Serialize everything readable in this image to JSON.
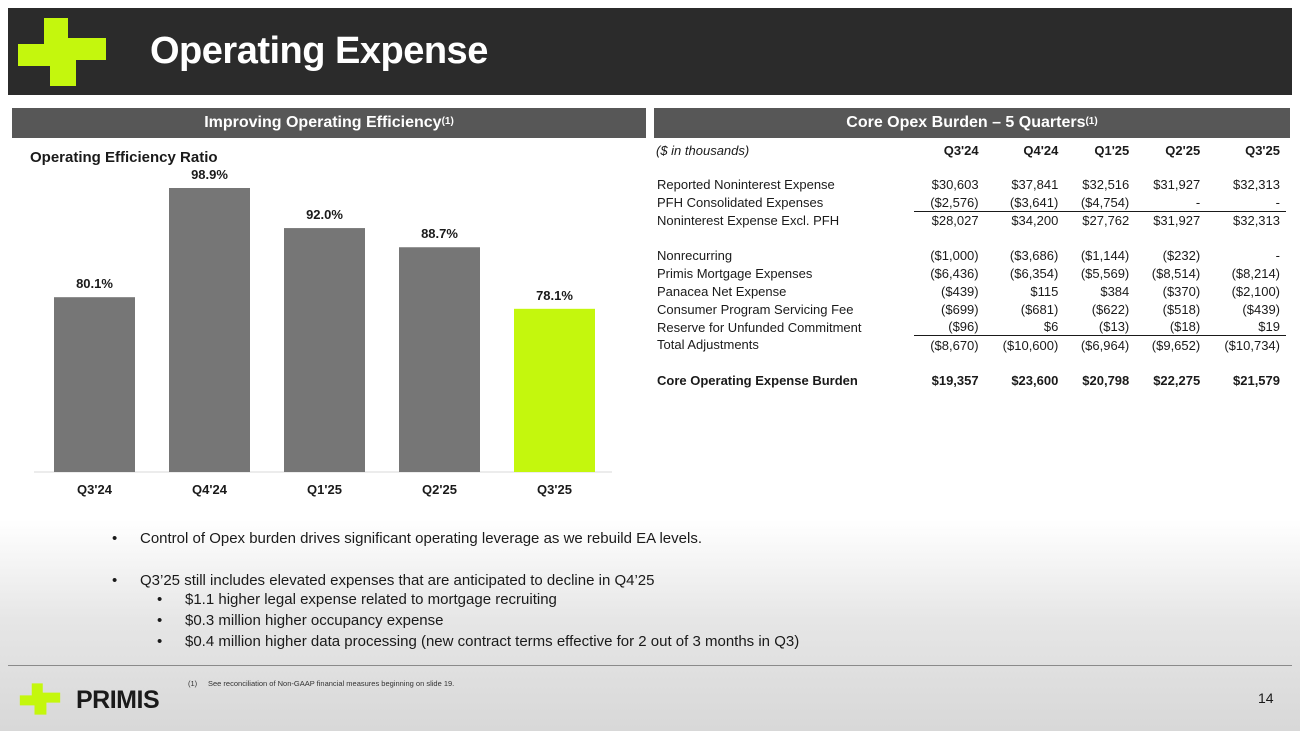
{
  "header": {
    "title": "Operating Expense"
  },
  "left_section": {
    "heading": "Improving Operating Efficiency",
    "heading_sup": "(1)"
  },
  "right_section": {
    "heading": "Core Opex Burden – 5 Quarters",
    "heading_sup": "(1)"
  },
  "colors": {
    "accent": "#c4f70d",
    "bar": "#767676",
    "header_bg": "#2b2b2b",
    "section_bg": "#575757"
  },
  "chart_data": {
    "type": "bar",
    "title": "Operating Efficiency Ratio",
    "categories": [
      "Q3'24",
      "Q4'24",
      "Q1'25",
      "Q2'25",
      "Q3'25"
    ],
    "values": [
      80.1,
      98.9,
      92.0,
      88.7,
      78.1
    ],
    "labels": [
      "80.1%",
      "98.9%",
      "92.0%",
      "88.7%",
      "78.1%"
    ],
    "highlight_index": 4,
    "ylim": [
      50,
      102
    ],
    "grid": false,
    "xlabel": "",
    "ylabel": ""
  },
  "table": {
    "units": "($ in thousands)",
    "columns": [
      "Q3'24",
      "Q4'24",
      "Q1'25",
      "Q2'25",
      "Q3'25"
    ],
    "groups": [
      [
        {
          "label": "Reported Noninterest Expense",
          "values": [
            "$30,603",
            "$37,841",
            "$32,516",
            "$31,927",
            "$32,313"
          ]
        },
        {
          "label": "PFH Consolidated Expenses",
          "values": [
            "($2,576)",
            "($3,641)",
            "($4,754)",
            "-",
            "-"
          ],
          "underline": true
        },
        {
          "label": "Noninterest Expense Excl. PFH",
          "values": [
            "$28,027",
            "$34,200",
            "$27,762",
            "$31,927",
            "$32,313"
          ]
        }
      ],
      [
        {
          "label": "Nonrecurring",
          "values": [
            "($1,000)",
            "($3,686)",
            "($1,144)",
            "($232)",
            "-"
          ]
        },
        {
          "label": "Primis Mortgage Expenses",
          "values": [
            "($6,436)",
            "($6,354)",
            "($5,569)",
            "($8,514)",
            "($8,214)"
          ]
        },
        {
          "label": "Panacea Net Expense",
          "values": [
            "($439)",
            "$115",
            "$384",
            "($370)",
            "($2,100)"
          ]
        },
        {
          "label": "Consumer Program Servicing Fee",
          "values": [
            "($699)",
            "($681)",
            "($622)",
            "($518)",
            "($439)"
          ]
        },
        {
          "label": "Reserve for Unfunded Commitment",
          "values": [
            "($96)",
            "$6",
            "($13)",
            "($18)",
            "$19"
          ],
          "underline": true
        },
        {
          "label": "Total Adjustments",
          "values": [
            "($8,670)",
            "($10,600)",
            "($6,964)",
            "($9,652)",
            "($10,734)"
          ]
        }
      ],
      [
        {
          "label": "Core Operating Expense Burden",
          "values": [
            "$19,357",
            "$23,600",
            "$20,798",
            "$22,275",
            "$21,579"
          ],
          "bold": true
        }
      ]
    ]
  },
  "bullets": {
    "b1": "Control of Opex burden drives significant operating leverage as we rebuild EA levels.",
    "b2": "Q3’25 still includes elevated expenses that are anticipated to decline in Q4’25",
    "sub": [
      "$1.1 higher legal expense related to mortgage recruiting",
      "$0.3 million higher occupancy expense",
      "$0.4 million higher data processing (new contract terms effective for 2 out of 3 months in Q3)"
    ],
    "marker": "•"
  },
  "footer": {
    "footnote_num": "(1)",
    "footnote": "See reconciliation of Non-GAAP financial measures beginning on slide 19.",
    "brand": "PRIMIS",
    "page": "14"
  }
}
